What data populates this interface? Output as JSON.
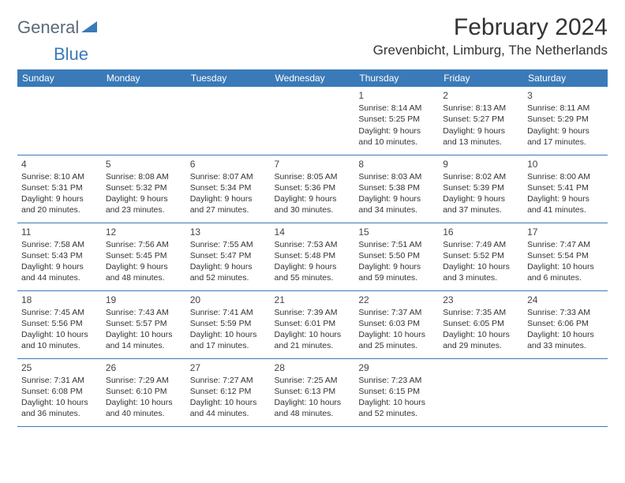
{
  "logo": {
    "general": "General",
    "blue": "Blue"
  },
  "title": "February 2024",
  "location": "Grevenbicht, Limburg, The Netherlands",
  "colors": {
    "header_bg": "#3a7ab8",
    "header_text": "#ffffff",
    "border": "#3a7ab8",
    "body_text": "#333333",
    "logo_gray": "#5a6b7a",
    "logo_blue": "#3a7ab8",
    "background": "#ffffff"
  },
  "typography": {
    "title_fontsize": 30,
    "location_fontsize": 17,
    "weekday_fontsize": 12,
    "daynum_fontsize": 12,
    "body_fontsize": 10.5
  },
  "weekdays": [
    "Sunday",
    "Monday",
    "Tuesday",
    "Wednesday",
    "Thursday",
    "Friday",
    "Saturday"
  ],
  "weeks": [
    [
      null,
      null,
      null,
      null,
      {
        "day": "1",
        "sunrise": "Sunrise: 8:14 AM",
        "sunset": "Sunset: 5:25 PM",
        "daylight1": "Daylight: 9 hours",
        "daylight2": "and 10 minutes."
      },
      {
        "day": "2",
        "sunrise": "Sunrise: 8:13 AM",
        "sunset": "Sunset: 5:27 PM",
        "daylight1": "Daylight: 9 hours",
        "daylight2": "and 13 minutes."
      },
      {
        "day": "3",
        "sunrise": "Sunrise: 8:11 AM",
        "sunset": "Sunset: 5:29 PM",
        "daylight1": "Daylight: 9 hours",
        "daylight2": "and 17 minutes."
      }
    ],
    [
      {
        "day": "4",
        "sunrise": "Sunrise: 8:10 AM",
        "sunset": "Sunset: 5:31 PM",
        "daylight1": "Daylight: 9 hours",
        "daylight2": "and 20 minutes."
      },
      {
        "day": "5",
        "sunrise": "Sunrise: 8:08 AM",
        "sunset": "Sunset: 5:32 PM",
        "daylight1": "Daylight: 9 hours",
        "daylight2": "and 23 minutes."
      },
      {
        "day": "6",
        "sunrise": "Sunrise: 8:07 AM",
        "sunset": "Sunset: 5:34 PM",
        "daylight1": "Daylight: 9 hours",
        "daylight2": "and 27 minutes."
      },
      {
        "day": "7",
        "sunrise": "Sunrise: 8:05 AM",
        "sunset": "Sunset: 5:36 PM",
        "daylight1": "Daylight: 9 hours",
        "daylight2": "and 30 minutes."
      },
      {
        "day": "8",
        "sunrise": "Sunrise: 8:03 AM",
        "sunset": "Sunset: 5:38 PM",
        "daylight1": "Daylight: 9 hours",
        "daylight2": "and 34 minutes."
      },
      {
        "day": "9",
        "sunrise": "Sunrise: 8:02 AM",
        "sunset": "Sunset: 5:39 PM",
        "daylight1": "Daylight: 9 hours",
        "daylight2": "and 37 minutes."
      },
      {
        "day": "10",
        "sunrise": "Sunrise: 8:00 AM",
        "sunset": "Sunset: 5:41 PM",
        "daylight1": "Daylight: 9 hours",
        "daylight2": "and 41 minutes."
      }
    ],
    [
      {
        "day": "11",
        "sunrise": "Sunrise: 7:58 AM",
        "sunset": "Sunset: 5:43 PM",
        "daylight1": "Daylight: 9 hours",
        "daylight2": "and 44 minutes."
      },
      {
        "day": "12",
        "sunrise": "Sunrise: 7:56 AM",
        "sunset": "Sunset: 5:45 PM",
        "daylight1": "Daylight: 9 hours",
        "daylight2": "and 48 minutes."
      },
      {
        "day": "13",
        "sunrise": "Sunrise: 7:55 AM",
        "sunset": "Sunset: 5:47 PM",
        "daylight1": "Daylight: 9 hours",
        "daylight2": "and 52 minutes."
      },
      {
        "day": "14",
        "sunrise": "Sunrise: 7:53 AM",
        "sunset": "Sunset: 5:48 PM",
        "daylight1": "Daylight: 9 hours",
        "daylight2": "and 55 minutes."
      },
      {
        "day": "15",
        "sunrise": "Sunrise: 7:51 AM",
        "sunset": "Sunset: 5:50 PM",
        "daylight1": "Daylight: 9 hours",
        "daylight2": "and 59 minutes."
      },
      {
        "day": "16",
        "sunrise": "Sunrise: 7:49 AM",
        "sunset": "Sunset: 5:52 PM",
        "daylight1": "Daylight: 10 hours",
        "daylight2": "and 3 minutes."
      },
      {
        "day": "17",
        "sunrise": "Sunrise: 7:47 AM",
        "sunset": "Sunset: 5:54 PM",
        "daylight1": "Daylight: 10 hours",
        "daylight2": "and 6 minutes."
      }
    ],
    [
      {
        "day": "18",
        "sunrise": "Sunrise: 7:45 AM",
        "sunset": "Sunset: 5:56 PM",
        "daylight1": "Daylight: 10 hours",
        "daylight2": "and 10 minutes."
      },
      {
        "day": "19",
        "sunrise": "Sunrise: 7:43 AM",
        "sunset": "Sunset: 5:57 PM",
        "daylight1": "Daylight: 10 hours",
        "daylight2": "and 14 minutes."
      },
      {
        "day": "20",
        "sunrise": "Sunrise: 7:41 AM",
        "sunset": "Sunset: 5:59 PM",
        "daylight1": "Daylight: 10 hours",
        "daylight2": "and 17 minutes."
      },
      {
        "day": "21",
        "sunrise": "Sunrise: 7:39 AM",
        "sunset": "Sunset: 6:01 PM",
        "daylight1": "Daylight: 10 hours",
        "daylight2": "and 21 minutes."
      },
      {
        "day": "22",
        "sunrise": "Sunrise: 7:37 AM",
        "sunset": "Sunset: 6:03 PM",
        "daylight1": "Daylight: 10 hours",
        "daylight2": "and 25 minutes."
      },
      {
        "day": "23",
        "sunrise": "Sunrise: 7:35 AM",
        "sunset": "Sunset: 6:05 PM",
        "daylight1": "Daylight: 10 hours",
        "daylight2": "and 29 minutes."
      },
      {
        "day": "24",
        "sunrise": "Sunrise: 7:33 AM",
        "sunset": "Sunset: 6:06 PM",
        "daylight1": "Daylight: 10 hours",
        "daylight2": "and 33 minutes."
      }
    ],
    [
      {
        "day": "25",
        "sunrise": "Sunrise: 7:31 AM",
        "sunset": "Sunset: 6:08 PM",
        "daylight1": "Daylight: 10 hours",
        "daylight2": "and 36 minutes."
      },
      {
        "day": "26",
        "sunrise": "Sunrise: 7:29 AM",
        "sunset": "Sunset: 6:10 PM",
        "daylight1": "Daylight: 10 hours",
        "daylight2": "and 40 minutes."
      },
      {
        "day": "27",
        "sunrise": "Sunrise: 7:27 AM",
        "sunset": "Sunset: 6:12 PM",
        "daylight1": "Daylight: 10 hours",
        "daylight2": "and 44 minutes."
      },
      {
        "day": "28",
        "sunrise": "Sunrise: 7:25 AM",
        "sunset": "Sunset: 6:13 PM",
        "daylight1": "Daylight: 10 hours",
        "daylight2": "and 48 minutes."
      },
      {
        "day": "29",
        "sunrise": "Sunrise: 7:23 AM",
        "sunset": "Sunset: 6:15 PM",
        "daylight1": "Daylight: 10 hours",
        "daylight2": "and 52 minutes."
      },
      null,
      null
    ]
  ]
}
